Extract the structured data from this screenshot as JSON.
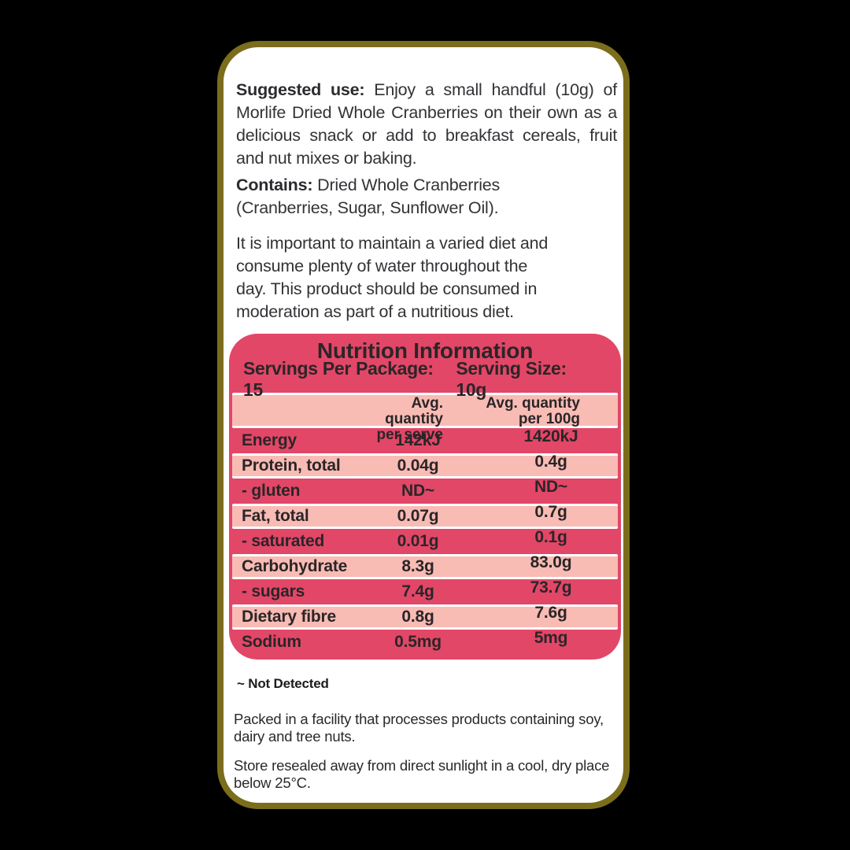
{
  "colors": {
    "background": "#000000",
    "label_border": "#7c6d1d",
    "label_background": "#ffffff",
    "panel_dark_pink": "#e24768",
    "panel_light_pink": "#f8bcb5",
    "panel_text": "#2b2527",
    "body_text": "#343236"
  },
  "suggested_use": {
    "lead": "Suggested use:",
    "line1_rest": " Enjoy a small handful (10g) of",
    "line2": "Morlife Dried Whole Cranberries on their own as a",
    "line3": "delicious snack or add to breakfast cereals, fruit",
    "line4": "and nut mixes or baking."
  },
  "contains": {
    "lead": "Contains:",
    "line1_rest": " Dried Whole Cranberries",
    "line2": "(Cranberries, Sugar, Sunflower Oil)."
  },
  "diet_advice": {
    "line1": "It is important to maintain a varied diet and",
    "line2": "consume plenty of water throughout the",
    "line3": "day. This product should be consumed in",
    "line4": "moderation as part of a nutritious diet."
  },
  "nutrition": {
    "title": "Nutrition Information",
    "servings_per_package": "Servings Per Package: 15",
    "serving_size": "Serving Size: 10g",
    "columns": {
      "per_serve_line1": "Avg. quantity",
      "per_serve_line2": "per serve",
      "per_100g_line1": "Avg. quantity",
      "per_100g_line2": "per 100g"
    },
    "rows": [
      {
        "name": "Energy",
        "per_serve": "142kJ",
        "per_100g": "1420kJ"
      },
      {
        "name": "Protein, total",
        "per_serve": "0.04g",
        "per_100g": "0.4g"
      },
      {
        "name": "- gluten",
        "per_serve": "ND~",
        "per_100g": "ND~"
      },
      {
        "name": "Fat, total",
        "per_serve": "0.07g",
        "per_100g": "0.7g"
      },
      {
        "name": "- saturated",
        "per_serve": "0.01g",
        "per_100g": "0.1g"
      },
      {
        "name": "Carbohydrate",
        "per_serve": "8.3g",
        "per_100g": "83.0g"
      },
      {
        "name": "- sugars",
        "per_serve": "7.4g",
        "per_100g": "73.7g"
      },
      {
        "name": "Dietary fibre",
        "per_serve": "0.8g",
        "per_100g": "7.6g"
      },
      {
        "name": "Sodium",
        "per_serve": "0.5mg",
        "per_100g": "5mg"
      }
    ]
  },
  "footnote": "~ Not Detected",
  "allergen_note": {
    "line1": "Packed in a facility that processes products containing soy,",
    "line2": "dairy and tree nuts."
  },
  "storage_note": {
    "line1": "Store resealed away from direct sunlight in a cool, dry place",
    "line2": "below 25°C."
  }
}
